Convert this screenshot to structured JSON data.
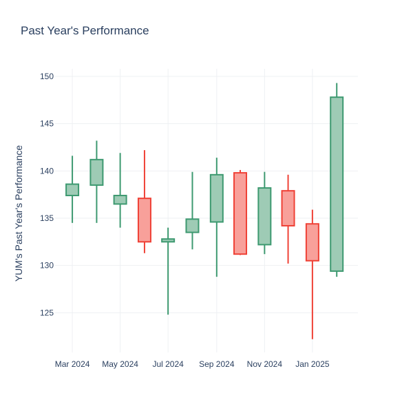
{
  "chart_data": {
    "type": "candlestick",
    "title": "Past Year's Performance",
    "xlabel": "",
    "ylabel": "YUM's Past Year's Performance",
    "ylim": [
      120.8,
      150.8
    ],
    "yticks": [
      125,
      130,
      135,
      140,
      145,
      150
    ],
    "xlim": [
      "2024-02-08",
      "2025-02-28"
    ],
    "xticks": [
      {
        "date": "2024-03-01",
        "label": "Mar 2024"
      },
      {
        "date": "2024-05-01",
        "label": "May 2024"
      },
      {
        "date": "2024-07-01",
        "label": "Jul 2024"
      },
      {
        "date": "2024-09-01",
        "label": "Sep 2024"
      },
      {
        "date": "2024-11-01",
        "label": "Nov 2024"
      },
      {
        "date": "2025-01-01",
        "label": "Jan 2025"
      }
    ],
    "colors": {
      "increasing": "#3d9970",
      "decreasing": "#ef4136",
      "increasing_fill": "#9ecbb5",
      "decreasing_fill": "#f8a09a",
      "text": "#2a3f5f",
      "grid": "#eef0f3"
    },
    "candles": [
      {
        "date": "2024-03-01",
        "open": 137.4,
        "high": 141.6,
        "low": 134.5,
        "close": 138.6
      },
      {
        "date": "2024-04-01",
        "open": 138.5,
        "high": 143.2,
        "low": 134.5,
        "close": 141.2
      },
      {
        "date": "2024-05-01",
        "open": 136.5,
        "high": 141.9,
        "low": 134.0,
        "close": 137.4
      },
      {
        "date": "2024-06-01",
        "open": 137.1,
        "high": 142.2,
        "low": 131.3,
        "close": 132.5
      },
      {
        "date": "2024-07-01",
        "open": 132.5,
        "high": 134.0,
        "low": 124.8,
        "close": 132.8
      },
      {
        "date": "2024-08-01",
        "open": 133.5,
        "high": 139.9,
        "low": 131.7,
        "close": 134.9
      },
      {
        "date": "2024-09-01",
        "open": 134.6,
        "high": 141.4,
        "low": 128.8,
        "close": 139.6
      },
      {
        "date": "2024-10-01",
        "open": 139.8,
        "high": 140.1,
        "low": 131.1,
        "close": 131.2
      },
      {
        "date": "2024-11-01",
        "open": 132.2,
        "high": 139.9,
        "low": 131.2,
        "close": 138.2
      },
      {
        "date": "2024-12-01",
        "open": 137.9,
        "high": 139.6,
        "low": 130.2,
        "close": 134.2
      },
      {
        "date": "2025-01-01",
        "open": 134.4,
        "high": 135.9,
        "low": 122.2,
        "close": 130.5
      },
      {
        "date": "2025-02-01",
        "open": 129.4,
        "high": 149.3,
        "low": 128.8,
        "close": 147.8
      }
    ]
  }
}
